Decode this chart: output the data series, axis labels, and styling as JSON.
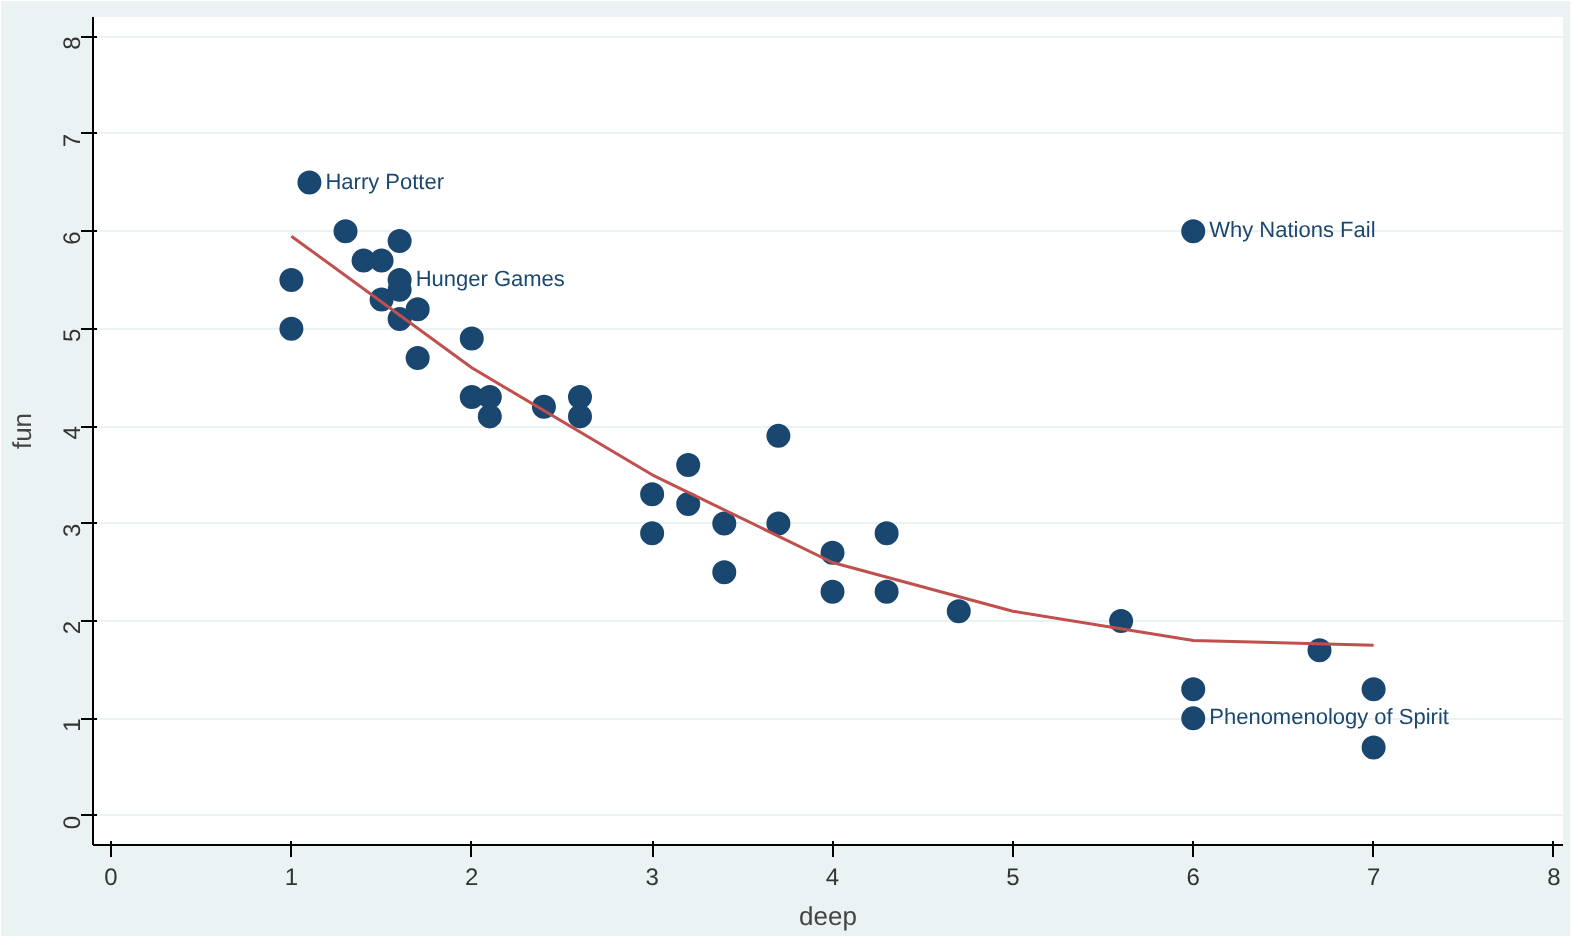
{
  "chart_data": {
    "type": "scatter",
    "xlabel": "deep",
    "ylabel": "fun",
    "xlim": [
      -0.1,
      8.05
    ],
    "ylim": [
      -0.3,
      8.2
    ],
    "xticks": [
      0,
      1,
      2,
      3,
      4,
      5,
      6,
      7,
      8
    ],
    "yticks": [
      0,
      1,
      2,
      3,
      4,
      5,
      6,
      7,
      8
    ],
    "grid": "y",
    "series": [
      {
        "marker": "circle",
        "color": "#1a476f",
        "x": [
          1.1,
          1.3,
          1.4,
          1.5,
          1.6,
          1.6,
          1.6,
          1.5,
          1.6,
          1.7,
          1.0,
          1.0,
          1.7,
          2.0,
          2.0,
          2.1,
          2.1,
          2.4,
          2.6,
          2.6,
          3.0,
          3.0,
          3.2,
          3.2,
          3.4,
          3.4,
          3.7,
          3.7,
          4.0,
          4.0,
          4.3,
          4.3,
          4.7,
          5.6,
          6.0,
          6.0,
          6.0,
          6.7,
          7.0,
          7.0
        ],
        "values": [
          6.5,
          6.0,
          5.7,
          5.7,
          5.9,
          5.5,
          5.4,
          5.3,
          5.1,
          5.2,
          5.5,
          5.0,
          4.7,
          4.9,
          4.3,
          4.3,
          4.1,
          4.2,
          4.3,
          4.1,
          3.3,
          2.9,
          3.6,
          3.2,
          3.0,
          2.5,
          3.9,
          3.0,
          2.7,
          2.3,
          2.9,
          2.3,
          2.1,
          2.0,
          6.0,
          1.3,
          1.0,
          1.7,
          1.3,
          0.7
        ]
      },
      {
        "type": "line",
        "color": "#c0504d",
        "x": [
          1,
          2,
          3,
          4,
          5,
          6,
          7
        ],
        "values": [
          5.95,
          4.6,
          3.5,
          2.6,
          2.1,
          1.8,
          1.75
        ]
      }
    ],
    "annotations": [
      {
        "text": "Harry Potter",
        "x": 1.1,
        "y": 6.5
      },
      {
        "text": "Hunger Games",
        "x": 1.6,
        "y": 5.5
      },
      {
        "text": "Why Nations Fail",
        "x": 6.0,
        "y": 6.0
      },
      {
        "text": "Phenomenology of Spirit",
        "x": 6.0,
        "y": 1.0
      }
    ]
  }
}
